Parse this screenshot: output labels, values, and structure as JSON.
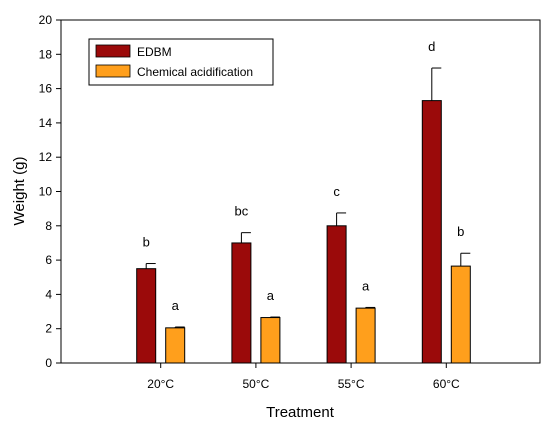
{
  "chart_data": {
    "type": "bar",
    "xlabel": "Treatment",
    "ylabel": "Weight (g)",
    "ylim": [
      0,
      20
    ],
    "yticks": [
      0,
      2,
      4,
      6,
      8,
      10,
      12,
      14,
      16,
      18,
      20
    ],
    "grid": false,
    "legend_position": "top-left",
    "categories": [
      "20°C",
      "50°C",
      "55°C",
      "60°C"
    ],
    "series": [
      {
        "name": "EDBM",
        "color": "#9b0a0a",
        "values": [
          5.5,
          7.0,
          8.0,
          15.3
        ],
        "errors": [
          0.3,
          0.6,
          0.75,
          1.9
        ],
        "labels": [
          "b",
          "bc",
          "c",
          "d"
        ]
      },
      {
        "name": "Chemical acidification",
        "color": "#ff9f1c",
        "values": [
          2.05,
          2.65,
          3.2,
          5.65
        ],
        "errors": [
          0.05,
          0.03,
          0.04,
          0.75
        ],
        "labels": [
          "a",
          "a",
          "a",
          "b"
        ]
      }
    ]
  }
}
